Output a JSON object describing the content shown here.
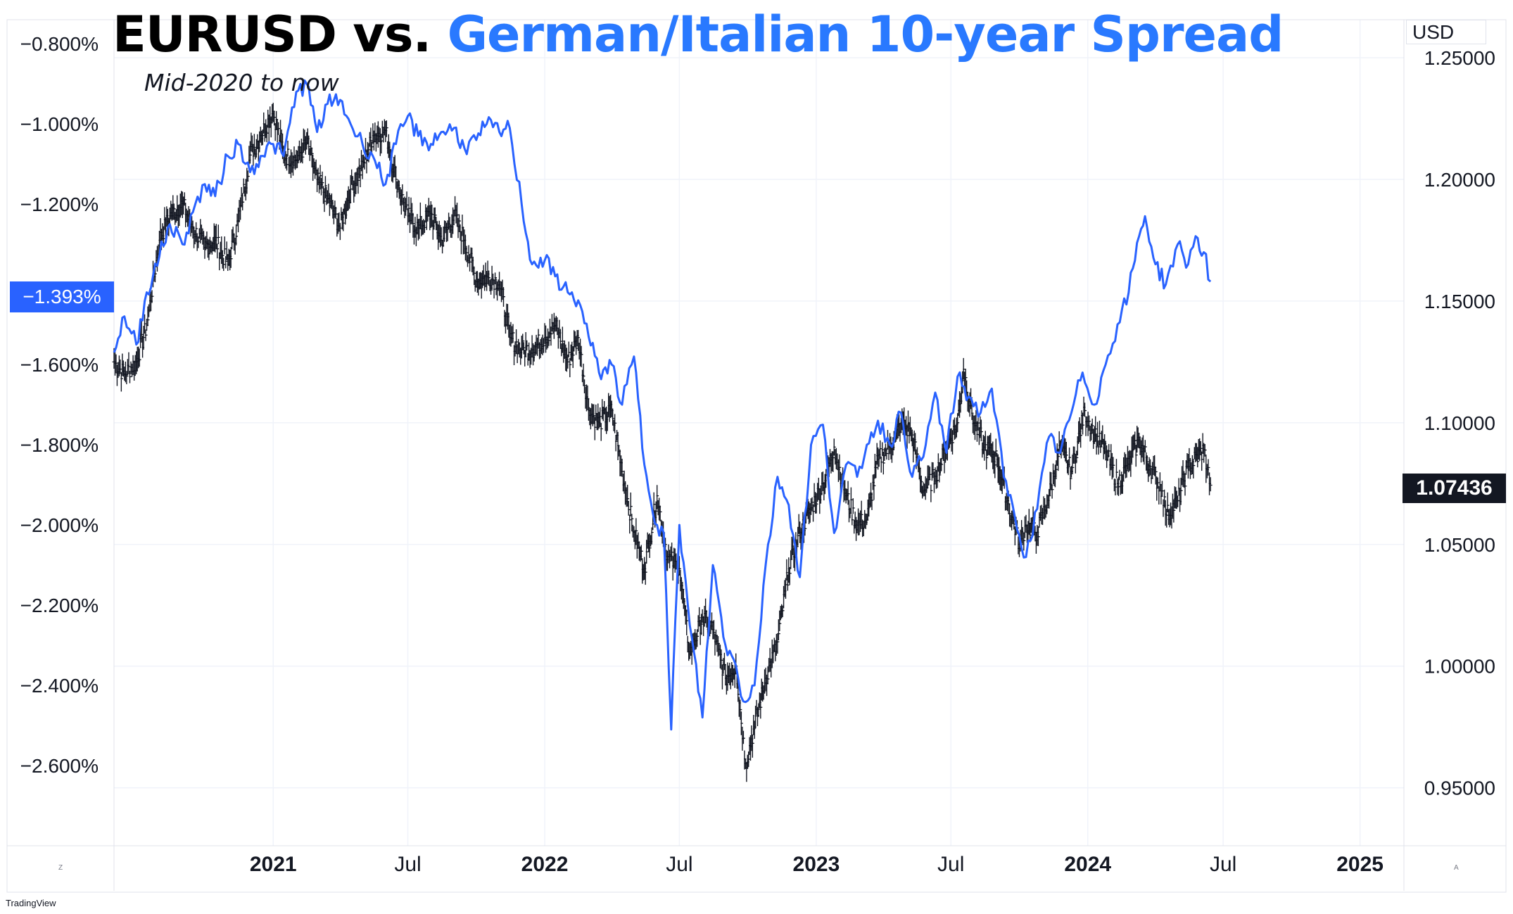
{
  "header": {
    "title_part1": "EURUSD vs. ",
    "title_part2": "German/Italian 10-year Spread",
    "title_color1": "#000000",
    "title_color2": "#2979ff",
    "subtitle": "Mid-2020 to now"
  },
  "axes": {
    "right_unit": "USD",
    "left_ticks": [
      "−0.800%",
      "−1.000%",
      "−1.200%",
      "−1.600%",
      "−1.800%",
      "−2.000%",
      "−2.200%",
      "−2.400%",
      "−2.600%"
    ],
    "right_ticks": [
      "1.25000",
      "1.20000",
      "1.15000",
      "1.10000",
      "1.05000",
      "1.00000",
      "0.95000"
    ],
    "x_ticks": [
      {
        "label": "2021",
        "bold": true
      },
      {
        "label": "Jul",
        "bold": false
      },
      {
        "label": "2022",
        "bold": true
      },
      {
        "label": "Jul",
        "bold": false
      },
      {
        "label": "2023",
        "bold": true
      },
      {
        "label": "Jul",
        "bold": false
      },
      {
        "label": "2024",
        "bold": true
      },
      {
        "label": "Jul",
        "bold": false
      },
      {
        "label": "2025",
        "bold": true
      }
    ]
  },
  "badges": {
    "left_last": "−1.393%",
    "right_last": "1.07436",
    "left_color": "#2962ff",
    "right_color": "#131722"
  },
  "footer": {
    "brand": "TradingView",
    "corner_left": "Z",
    "corner_right": "A"
  },
  "chart_data": {
    "type": "line",
    "title": "EURUSD vs. German/Italian 10-year Spread",
    "subtitle": "Mid-2020 to now",
    "x_range": [
      "2020-06-01",
      "2025-03-01"
    ],
    "y_left": {
      "label": "",
      "range": [
        -2.8,
        -0.74
      ],
      "unit": "%"
    },
    "y_right": {
      "label": "USD",
      "range": [
        0.9262,
        1.2656
      ]
    },
    "grid": true,
    "series": [
      {
        "axis": "left",
        "color": "#2962ff",
        "style": "line",
        "last_value": -1.393,
        "points": [
          [
            "2020-06-01",
            -1.57
          ],
          [
            "2020-06-15",
            -1.48
          ],
          [
            "2020-07-01",
            -1.55
          ],
          [
            "2020-07-15",
            -1.42
          ],
          [
            "2020-08-01",
            -1.33
          ],
          [
            "2020-08-15",
            -1.25
          ],
          [
            "2020-09-01",
            -1.3
          ],
          [
            "2020-09-15",
            -1.22
          ],
          [
            "2020-10-01",
            -1.15
          ],
          [
            "2020-10-15",
            -1.18
          ],
          [
            "2020-11-01",
            -1.08
          ],
          [
            "2020-11-15",
            -1.05
          ],
          [
            "2020-12-01",
            -1.12
          ],
          [
            "2020-12-15",
            -1.08
          ],
          [
            "2021-01-01",
            -1.05
          ],
          [
            "2021-01-15",
            -1.08
          ],
          [
            "2021-02-01",
            -0.92
          ],
          [
            "2021-02-15",
            -0.9
          ],
          [
            "2021-03-01",
            -1.02
          ],
          [
            "2021-03-15",
            -0.95
          ],
          [
            "2021-04-01",
            -0.94
          ],
          [
            "2021-04-15",
            -1.0
          ],
          [
            "2021-05-01",
            -1.05
          ],
          [
            "2021-05-15",
            -1.08
          ],
          [
            "2021-06-01",
            -1.15
          ],
          [
            "2021-06-15",
            -1.05
          ],
          [
            "2021-07-01",
            -0.98
          ],
          [
            "2021-07-15",
            -1.03
          ],
          [
            "2021-08-01",
            -1.05
          ],
          [
            "2021-08-15",
            -1.02
          ],
          [
            "2021-09-01",
            -1.01
          ],
          [
            "2021-09-15",
            -1.06
          ],
          [
            "2021-10-01",
            -1.04
          ],
          [
            "2021-10-15",
            -1.0
          ],
          [
            "2021-11-01",
            -1.02
          ],
          [
            "2021-11-15",
            -1.01
          ],
          [
            "2021-12-01",
            -1.2
          ],
          [
            "2021-12-15",
            -1.35
          ],
          [
            "2022-01-01",
            -1.34
          ],
          [
            "2022-01-15",
            -1.38
          ],
          [
            "2022-02-01",
            -1.42
          ],
          [
            "2022-02-15",
            -1.44
          ],
          [
            "2022-03-01",
            -1.53
          ],
          [
            "2022-03-15",
            -1.62
          ],
          [
            "2022-04-01",
            -1.6
          ],
          [
            "2022-04-15",
            -1.7
          ],
          [
            "2022-05-01",
            -1.58
          ],
          [
            "2022-05-15",
            -1.85
          ],
          [
            "2022-06-01",
            -2.0
          ],
          [
            "2022-06-10",
            -2.02
          ],
          [
            "2022-06-20",
            -2.51
          ],
          [
            "2022-07-01",
            -2.0
          ],
          [
            "2022-07-15",
            -2.25
          ],
          [
            "2022-08-01",
            -2.48
          ],
          [
            "2022-08-15",
            -2.1
          ],
          [
            "2022-09-01",
            -2.3
          ],
          [
            "2022-09-15",
            -2.35
          ],
          [
            "2022-09-25",
            -2.44
          ],
          [
            "2022-10-10",
            -2.4
          ],
          [
            "2022-10-25",
            -2.1
          ],
          [
            "2022-11-10",
            -1.88
          ],
          [
            "2022-11-25",
            -1.95
          ],
          [
            "2022-12-10",
            -2.13
          ],
          [
            "2022-12-25",
            -1.8
          ],
          [
            "2023-01-10",
            -1.75
          ],
          [
            "2023-01-25",
            -2.02
          ],
          [
            "2023-02-10",
            -1.85
          ],
          [
            "2023-02-25",
            -1.88
          ],
          [
            "2023-03-10",
            -1.8
          ],
          [
            "2023-03-25",
            -1.74
          ],
          [
            "2023-04-10",
            -1.8
          ],
          [
            "2023-04-25",
            -1.72
          ],
          [
            "2023-05-10",
            -1.88
          ],
          [
            "2023-05-25",
            -1.83
          ],
          [
            "2023-06-10",
            -1.67
          ],
          [
            "2023-06-25",
            -1.82
          ],
          [
            "2023-07-10",
            -1.63
          ],
          [
            "2023-07-25",
            -1.68
          ],
          [
            "2023-08-10",
            -1.72
          ],
          [
            "2023-08-25",
            -1.66
          ],
          [
            "2023-09-10",
            -1.88
          ],
          [
            "2023-09-25",
            -1.98
          ],
          [
            "2023-10-10",
            -2.08
          ],
          [
            "2023-10-25",
            -1.96
          ],
          [
            "2023-11-10",
            -1.78
          ],
          [
            "2023-11-25",
            -1.82
          ],
          [
            "2023-12-10",
            -1.72
          ],
          [
            "2023-12-25",
            -1.62
          ],
          [
            "2024-01-10",
            -1.7
          ],
          [
            "2024-01-25",
            -1.6
          ],
          [
            "2024-02-10",
            -1.5
          ],
          [
            "2024-02-25",
            -1.42
          ],
          [
            "2024-03-10",
            -1.28
          ],
          [
            "2024-03-18",
            -1.23
          ],
          [
            "2024-04-01",
            -1.35
          ],
          [
            "2024-04-15",
            -1.4
          ],
          [
            "2024-05-01",
            -1.3
          ],
          [
            "2024-05-15",
            -1.35
          ],
          [
            "2024-05-25",
            -1.28
          ],
          [
            "2024-06-05",
            -1.32
          ],
          [
            "2024-06-14",
            -1.393
          ]
        ]
      },
      {
        "axis": "right",
        "color": "#131722",
        "style": "ohlc-bars",
        "last_value": 1.07436,
        "points": [
          [
            "2020-06-01",
            1.125
          ],
          [
            "2020-06-15",
            1.12
          ],
          [
            "2020-07-01",
            1.125
          ],
          [
            "2020-07-15",
            1.14
          ],
          [
            "2020-08-01",
            1.175
          ],
          [
            "2020-08-15",
            1.185
          ],
          [
            "2020-09-01",
            1.19
          ],
          [
            "2020-09-15",
            1.18
          ],
          [
            "2020-10-01",
            1.172
          ],
          [
            "2020-10-15",
            1.175
          ],
          [
            "2020-11-01",
            1.165
          ],
          [
            "2020-11-15",
            1.183
          ],
          [
            "2020-12-01",
            1.21
          ],
          [
            "2020-12-15",
            1.218
          ],
          [
            "2021-01-01",
            1.228
          ],
          [
            "2021-01-15",
            1.21
          ],
          [
            "2021-02-01",
            1.208
          ],
          [
            "2021-02-15",
            1.215
          ],
          [
            "2021-03-01",
            1.2
          ],
          [
            "2021-03-15",
            1.192
          ],
          [
            "2021-04-01",
            1.18
          ],
          [
            "2021-04-15",
            1.196
          ],
          [
            "2021-05-01",
            1.205
          ],
          [
            "2021-05-15",
            1.218
          ],
          [
            "2021-06-01",
            1.22
          ],
          [
            "2021-06-15",
            1.2
          ],
          [
            "2021-07-01",
            1.185
          ],
          [
            "2021-07-15",
            1.18
          ],
          [
            "2021-08-01",
            1.186
          ],
          [
            "2021-08-15",
            1.175
          ],
          [
            "2021-09-01",
            1.185
          ],
          [
            "2021-09-15",
            1.175
          ],
          [
            "2021-10-01",
            1.158
          ],
          [
            "2021-10-15",
            1.16
          ],
          [
            "2021-11-01",
            1.158
          ],
          [
            "2021-11-15",
            1.135
          ],
          [
            "2021-12-01",
            1.13
          ],
          [
            "2021-12-15",
            1.13
          ],
          [
            "2022-01-01",
            1.135
          ],
          [
            "2022-01-15",
            1.14
          ],
          [
            "2022-02-01",
            1.125
          ],
          [
            "2022-02-15",
            1.135
          ],
          [
            "2022-03-01",
            1.105
          ],
          [
            "2022-03-15",
            1.1
          ],
          [
            "2022-04-01",
            1.105
          ],
          [
            "2022-04-15",
            1.08
          ],
          [
            "2022-05-01",
            1.055
          ],
          [
            "2022-05-15",
            1.04
          ],
          [
            "2022-06-01",
            1.07
          ],
          [
            "2022-06-15",
            1.045
          ],
          [
            "2022-07-01",
            1.04
          ],
          [
            "2022-07-15",
            1.005
          ],
          [
            "2022-08-01",
            1.02
          ],
          [
            "2022-08-15",
            1.015
          ],
          [
            "2022-09-01",
            0.995
          ],
          [
            "2022-09-15",
            1.0
          ],
          [
            "2022-09-28",
            0.96
          ],
          [
            "2022-10-10",
            0.975
          ],
          [
            "2022-10-25",
            0.995
          ],
          [
            "2022-11-10",
            1.01
          ],
          [
            "2022-11-25",
            1.04
          ],
          [
            "2022-12-10",
            1.055
          ],
          [
            "2022-12-25",
            1.065
          ],
          [
            "2023-01-10",
            1.075
          ],
          [
            "2023-01-25",
            1.09
          ],
          [
            "2023-02-10",
            1.07
          ],
          [
            "2023-02-25",
            1.058
          ],
          [
            "2023-03-10",
            1.06
          ],
          [
            "2023-03-25",
            1.085
          ],
          [
            "2023-04-10",
            1.09
          ],
          [
            "2023-04-25",
            1.1
          ],
          [
            "2023-05-10",
            1.095
          ],
          [
            "2023-05-25",
            1.072
          ],
          [
            "2023-06-10",
            1.078
          ],
          [
            "2023-06-25",
            1.09
          ],
          [
            "2023-07-10",
            1.1
          ],
          [
            "2023-07-18",
            1.122
          ],
          [
            "2023-08-01",
            1.1
          ],
          [
            "2023-08-15",
            1.09
          ],
          [
            "2023-09-01",
            1.085
          ],
          [
            "2023-09-15",
            1.068
          ],
          [
            "2023-10-01",
            1.05
          ],
          [
            "2023-10-10",
            1.058
          ],
          [
            "2023-10-25",
            1.055
          ],
          [
            "2023-11-10",
            1.07
          ],
          [
            "2023-11-25",
            1.09
          ],
          [
            "2023-12-10",
            1.08
          ],
          [
            "2023-12-28",
            1.105
          ],
          [
            "2024-01-10",
            1.095
          ],
          [
            "2024-01-25",
            1.088
          ],
          [
            "2024-02-10",
            1.075
          ],
          [
            "2024-02-25",
            1.083
          ],
          [
            "2024-03-10",
            1.093
          ],
          [
            "2024-03-25",
            1.082
          ],
          [
            "2024-04-10",
            1.072
          ],
          [
            "2024-04-16",
            1.062
          ],
          [
            "2024-05-01",
            1.068
          ],
          [
            "2024-05-15",
            1.082
          ],
          [
            "2024-06-05",
            1.089
          ],
          [
            "2024-06-14",
            1.07436
          ]
        ]
      }
    ]
  }
}
